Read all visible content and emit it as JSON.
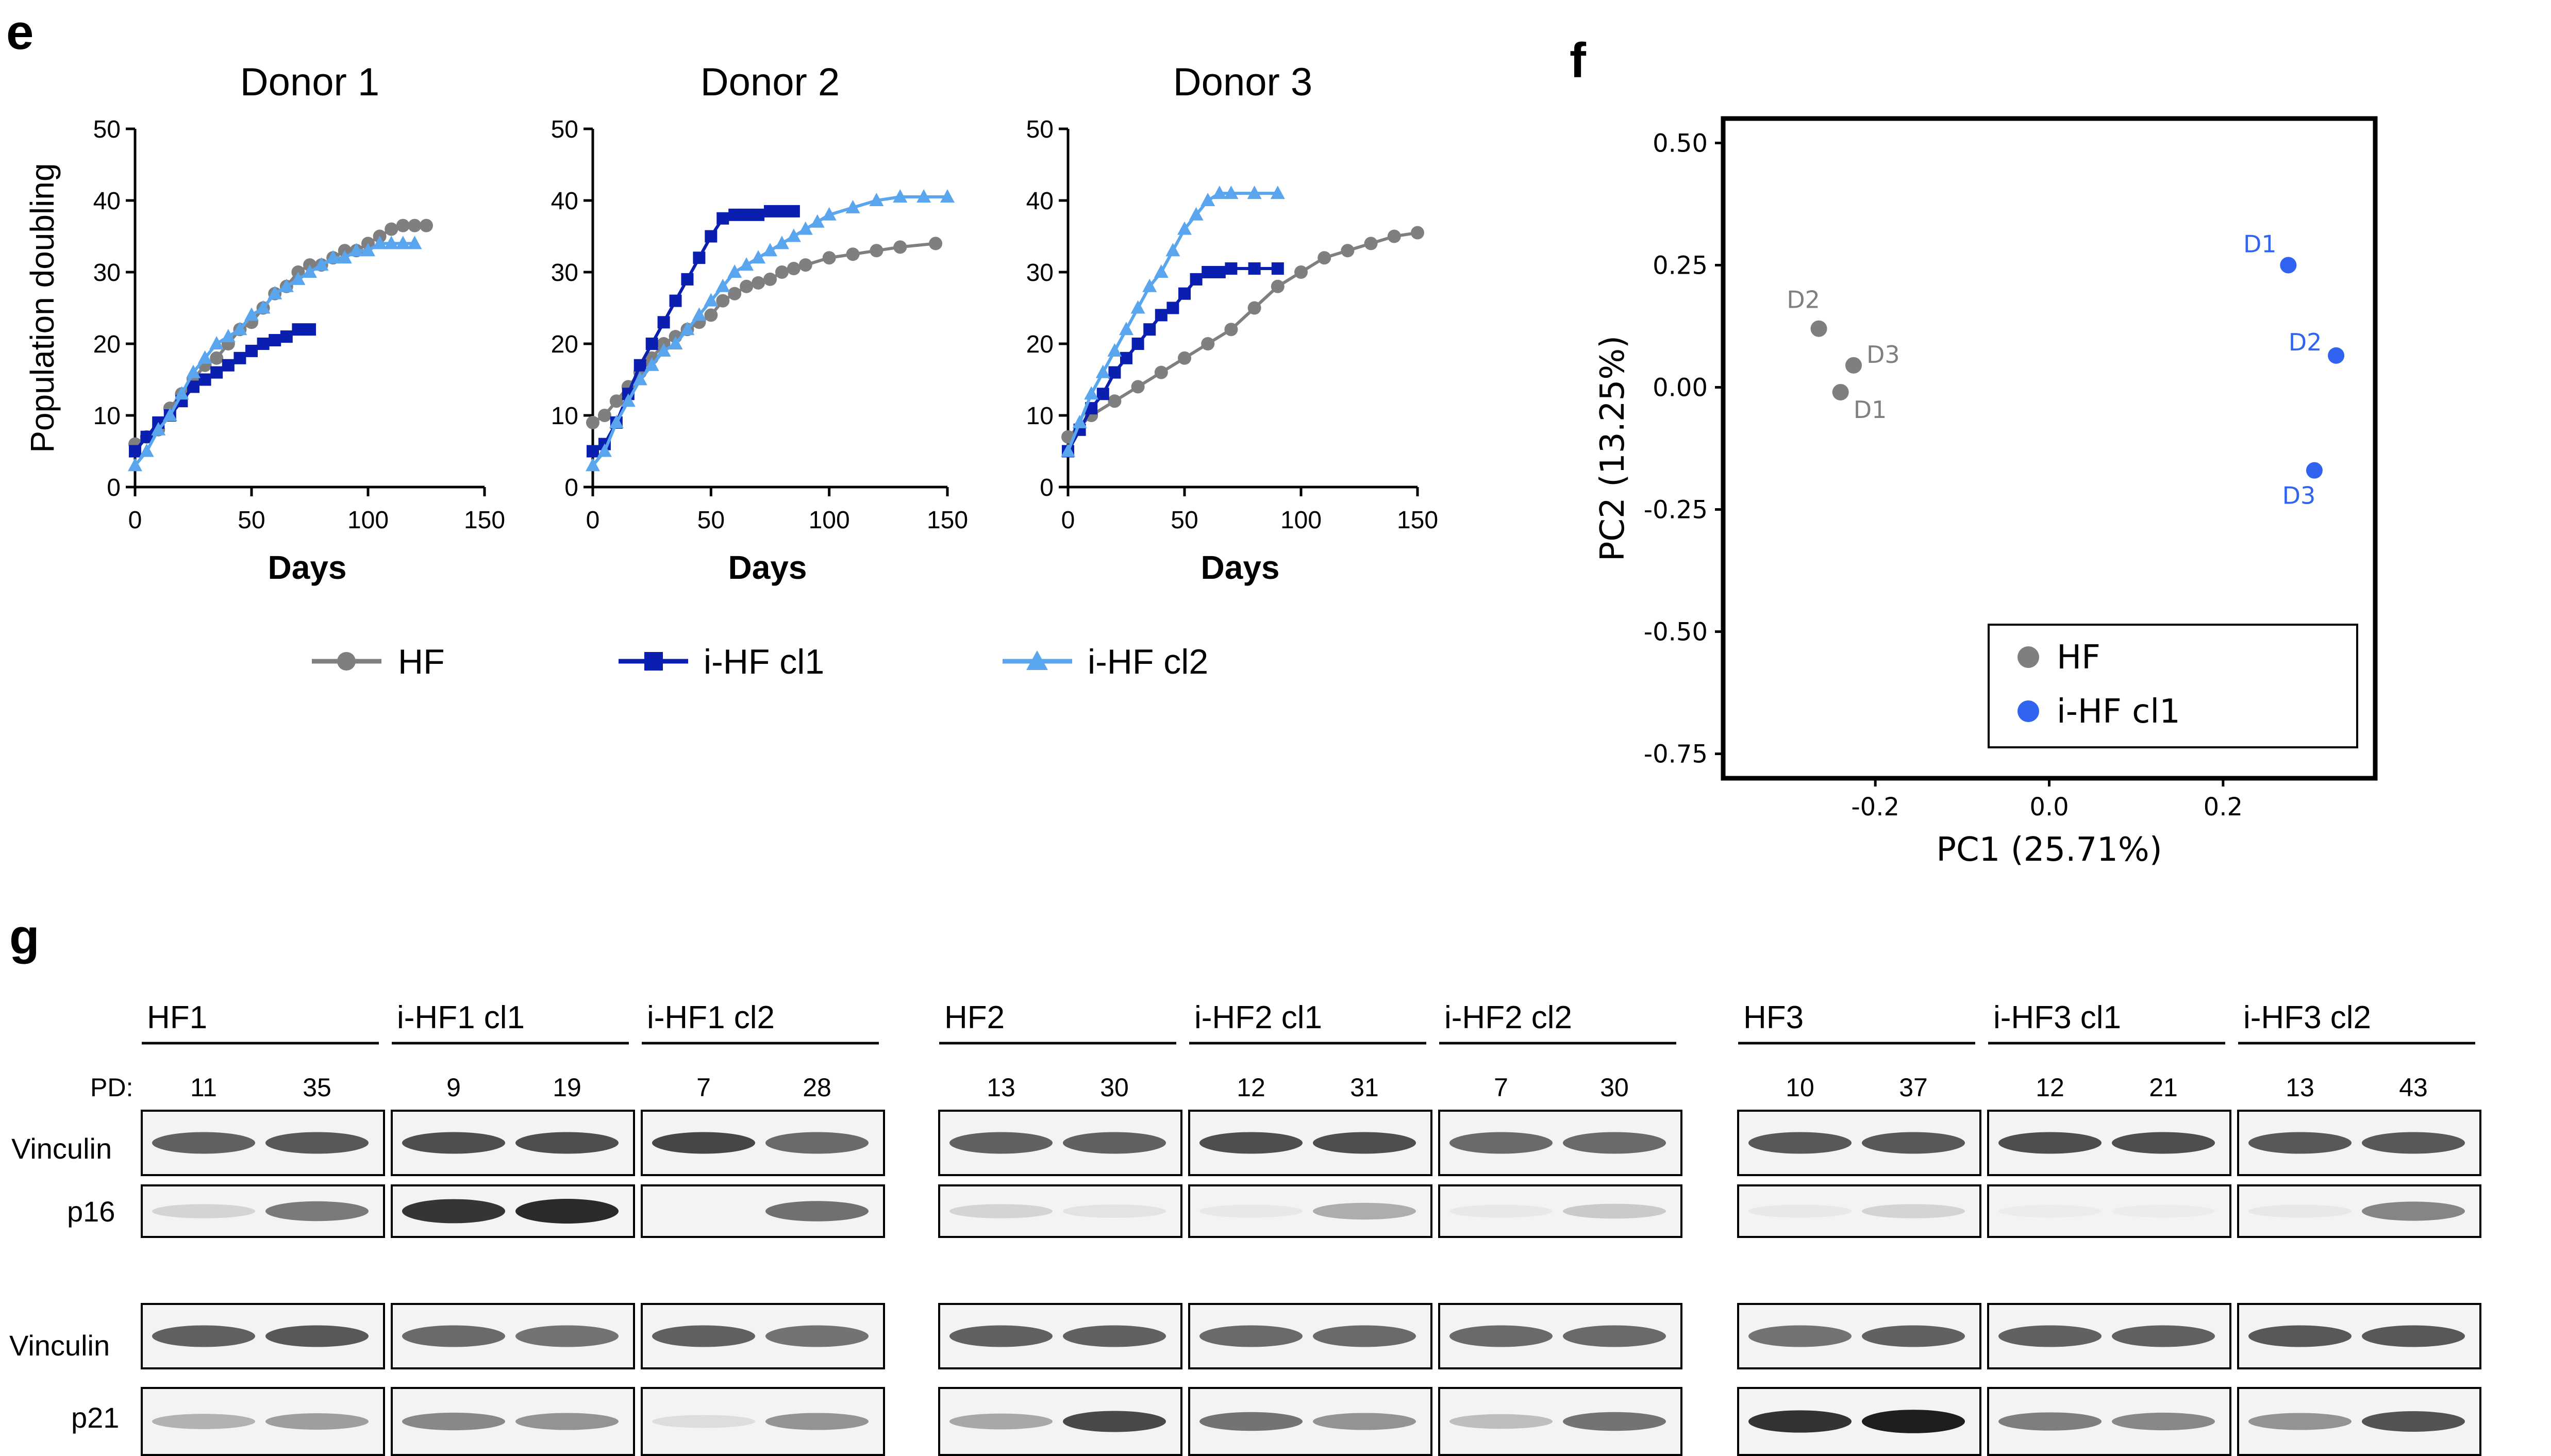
{
  "panels": {
    "e": "e",
    "f": "f",
    "g": "g"
  },
  "chart_data": [
    {
      "type": "line",
      "title": "Donor 1",
      "xlabel": "Days",
      "ylabel": "Population doubling",
      "xlim": [
        0,
        150
      ],
      "ylim": [
        0,
        50
      ],
      "xticks": [
        "0",
        "50",
        "100",
        "150"
      ],
      "yticks": [
        "0",
        "10",
        "20",
        "30",
        "40",
        "50"
      ],
      "series": [
        {
          "name": "HF",
          "color": "#7f7f7f",
          "marker": "circle",
          "x": [
            0,
            5,
            10,
            15,
            20,
            25,
            30,
            35,
            40,
            45,
            50,
            55,
            60,
            65,
            70,
            75,
            80,
            85,
            90,
            95,
            100,
            105,
            110,
            115,
            120,
            125
          ],
          "y": [
            6,
            7,
            8,
            11,
            13,
            15,
            17,
            18,
            20,
            22,
            23,
            25,
            27,
            28,
            30,
            31,
            31,
            32,
            33,
            33,
            34,
            35,
            36,
            36.5,
            36.5,
            36.5
          ]
        },
        {
          "name": "i-HF cl1",
          "color": "#0a1eb0",
          "marker": "square",
          "x": [
            0,
            5,
            10,
            15,
            20,
            25,
            30,
            35,
            40,
            45,
            50,
            55,
            60,
            65,
            70,
            75
          ],
          "y": [
            5,
            7,
            9,
            10,
            12,
            14,
            15,
            16,
            17,
            18,
            19,
            20,
            20.5,
            21,
            22,
            22
          ]
        },
        {
          "name": "i-HF cl2",
          "color": "#5aa6ee",
          "marker": "triangle",
          "x": [
            0,
            5,
            10,
            15,
            20,
            25,
            30,
            35,
            40,
            45,
            50,
            55,
            60,
            65,
            70,
            75,
            80,
            85,
            90,
            95,
            100,
            105,
            110,
            115,
            120
          ],
          "y": [
            3,
            5,
            8,
            10,
            13,
            16,
            18,
            20,
            21,
            22,
            24,
            25,
            27,
            28,
            29,
            30,
            31,
            32,
            32,
            33,
            33,
            34,
            34,
            34,
            34
          ]
        }
      ]
    },
    {
      "type": "line",
      "title": "Donor 2",
      "xlabel": "Days",
      "ylabel": "",
      "xlim": [
        0,
        150
      ],
      "ylim": [
        0,
        50
      ],
      "xticks": [
        "0",
        "50",
        "100",
        "150"
      ],
      "yticks": [
        "0",
        "10",
        "20",
        "30",
        "40",
        "50"
      ],
      "series": [
        {
          "name": "HF",
          "color": "#7f7f7f",
          "marker": "circle",
          "x": [
            0,
            5,
            10,
            15,
            20,
            25,
            30,
            35,
            40,
            45,
            50,
            55,
            60,
            65,
            70,
            75,
            80,
            85,
            90,
            100,
            110,
            120,
            130,
            145
          ],
          "y": [
            9,
            10,
            12,
            14,
            16,
            18,
            20,
            21,
            22,
            23,
            24,
            26,
            27,
            28,
            28.5,
            29,
            30,
            30.5,
            31,
            32,
            32.5,
            33,
            33.5,
            34
          ]
        },
        {
          "name": "i-HF cl1",
          "color": "#0a1eb0",
          "marker": "square",
          "x": [
            0,
            5,
            10,
            15,
            20,
            25,
            30,
            35,
            40,
            45,
            50,
            55,
            60,
            65,
            70,
            75,
            80,
            85
          ],
          "y": [
            5,
            6,
            9,
            13,
            17,
            20,
            23,
            26,
            29,
            32,
            35,
            37.5,
            38,
            38,
            38,
            38.5,
            38.5,
            38.5
          ]
        },
        {
          "name": "i-HF cl2",
          "color": "#5aa6ee",
          "marker": "triangle",
          "x": [
            0,
            5,
            10,
            15,
            20,
            25,
            30,
            35,
            40,
            45,
            50,
            55,
            60,
            65,
            70,
            75,
            80,
            85,
            90,
            95,
            100,
            110,
            120,
            130,
            140,
            150
          ],
          "y": [
            3,
            5,
            9,
            12,
            15,
            17,
            19,
            20,
            22,
            24,
            26,
            28,
            30,
            31,
            32,
            33,
            34,
            35,
            36,
            37,
            38,
            39,
            40,
            40.5,
            40.5,
            40.5
          ]
        }
      ]
    },
    {
      "type": "line",
      "title": "Donor 3",
      "xlabel": "Days",
      "ylabel": "",
      "xlim": [
        0,
        150
      ],
      "ylim": [
        0,
        50
      ],
      "xticks": [
        "0",
        "50",
        "100",
        "150"
      ],
      "yticks": [
        "0",
        "10",
        "20",
        "30",
        "40",
        "50"
      ],
      "series": [
        {
          "name": "HF",
          "color": "#7f7f7f",
          "marker": "circle",
          "x": [
            0,
            10,
            20,
            30,
            40,
            50,
            60,
            70,
            80,
            90,
            100,
            110,
            120,
            130,
            140,
            150
          ],
          "y": [
            7,
            10,
            12,
            14,
            16,
            18,
            20,
            22,
            25,
            28,
            30,
            32,
            33,
            34,
            35,
            35.5
          ]
        },
        {
          "name": "i-HF cl1",
          "color": "#0a1eb0",
          "marker": "square",
          "x": [
            0,
            5,
            10,
            15,
            20,
            25,
            30,
            35,
            40,
            45,
            50,
            55,
            60,
            65,
            70,
            80,
            90
          ],
          "y": [
            5,
            8,
            11,
            13,
            16,
            18,
            20,
            22,
            24,
            25,
            27,
            29,
            30,
            30,
            30.5,
            30.5,
            30.5
          ]
        },
        {
          "name": "i-HF cl2",
          "color": "#5aa6ee",
          "marker": "triangle",
          "x": [
            0,
            5,
            10,
            15,
            20,
            25,
            30,
            35,
            40,
            45,
            50,
            55,
            60,
            65,
            70,
            80,
            90
          ],
          "y": [
            5,
            9,
            13,
            16,
            19,
            22,
            25,
            28,
            30,
            33,
            36,
            38,
            40,
            41,
            41,
            41,
            41
          ]
        }
      ]
    },
    {
      "type": "scatter",
      "title": "",
      "xlabel": "PC1 (25.71%)",
      "ylabel": "PC2 (13.25%)",
      "xlim": [
        -0.375,
        0.375
      ],
      "ylim": [
        -0.8,
        0.55
      ],
      "xticks": [
        "-0.2",
        "0.0",
        "0.2"
      ],
      "yticks": [
        "0.50",
        "0.25",
        "0.00",
        "-0.25",
        "-0.50",
        "-0.75"
      ],
      "series": [
        {
          "name": "HF",
          "color": "#7f7f7f",
          "points": [
            {
              "label": "D2",
              "x": -0.265,
              "y": 0.12
            },
            {
              "label": "D3",
              "x": -0.225,
              "y": 0.045
            },
            {
              "label": "D1",
              "x": -0.24,
              "y": -0.01
            }
          ]
        },
        {
          "name": "i-HF cl1",
          "color": "#2f63f0",
          "points": [
            {
              "label": "D1",
              "x": 0.275,
              "y": 0.25
            },
            {
              "label": "D2",
              "x": 0.33,
              "y": 0.065
            },
            {
              "label": "D3",
              "x": 0.305,
              "y": -0.17
            }
          ]
        }
      ]
    }
  ],
  "legend_e": [
    "HF",
    "i-HF cl1",
    "i-HF cl2"
  ],
  "blot": {
    "pd_label": "PD:",
    "row_labels": [
      "Vinculin",
      "p16",
      "Vinculin",
      "p21"
    ],
    "groups": [
      {
        "name": "HF1",
        "pd": [
          "11",
          "35"
        ]
      },
      {
        "name": "i-HF1 cl1",
        "pd": [
          "9",
          "19"
        ]
      },
      {
        "name": "i-HF1 cl2",
        "pd": [
          "7",
          "28"
        ]
      },
      {
        "name": "HF2",
        "pd": [
          "13",
          "30"
        ]
      },
      {
        "name": "i-HF2 cl1",
        "pd": [
          "12",
          "31"
        ]
      },
      {
        "name": "i-HF2 cl2",
        "pd": [
          "7",
          "30"
        ]
      },
      {
        "name": "HF3",
        "pd": [
          "10",
          "37"
        ]
      },
      {
        "name": "i-HF3 cl1",
        "pd": [
          "12",
          "21"
        ]
      },
      {
        "name": "i-HF3 cl2",
        "pd": [
          "13",
          "43"
        ]
      }
    ],
    "band_intensity": {
      "vinculin1": [
        [
          0.8,
          0.85
        ],
        [
          0.9,
          0.9
        ],
        [
          0.95,
          0.75
        ],
        [
          0.8,
          0.8
        ],
        [
          0.9,
          0.9
        ],
        [
          0.75,
          0.75
        ],
        [
          0.85,
          0.85
        ],
        [
          0.9,
          0.9
        ],
        [
          0.85,
          0.85
        ]
      ],
      "p16": [
        [
          0.15,
          0.6
        ],
        [
          0.95,
          1.0
        ],
        [
          0.0,
          0.65
        ],
        [
          0.15,
          0.08
        ],
        [
          0.05,
          0.35
        ],
        [
          0.05,
          0.2
        ],
        [
          0.05,
          0.15
        ],
        [
          0.03,
          0.03
        ],
        [
          0.05,
          0.55
        ]
      ],
      "vinculin2": [
        [
          0.8,
          0.85
        ],
        [
          0.75,
          0.7
        ],
        [
          0.8,
          0.7
        ],
        [
          0.8,
          0.8
        ],
        [
          0.75,
          0.75
        ],
        [
          0.75,
          0.75
        ],
        [
          0.7,
          0.8
        ],
        [
          0.8,
          0.8
        ],
        [
          0.85,
          0.85
        ]
      ],
      "p21": [
        [
          0.3,
          0.4
        ],
        [
          0.5,
          0.45
        ],
        [
          0.1,
          0.45
        ],
        [
          0.35,
          0.8
        ],
        [
          0.6,
          0.45
        ],
        [
          0.25,
          0.6
        ],
        [
          0.9,
          1.0
        ],
        [
          0.55,
          0.5
        ],
        [
          0.45,
          0.75
        ]
      ]
    }
  }
}
